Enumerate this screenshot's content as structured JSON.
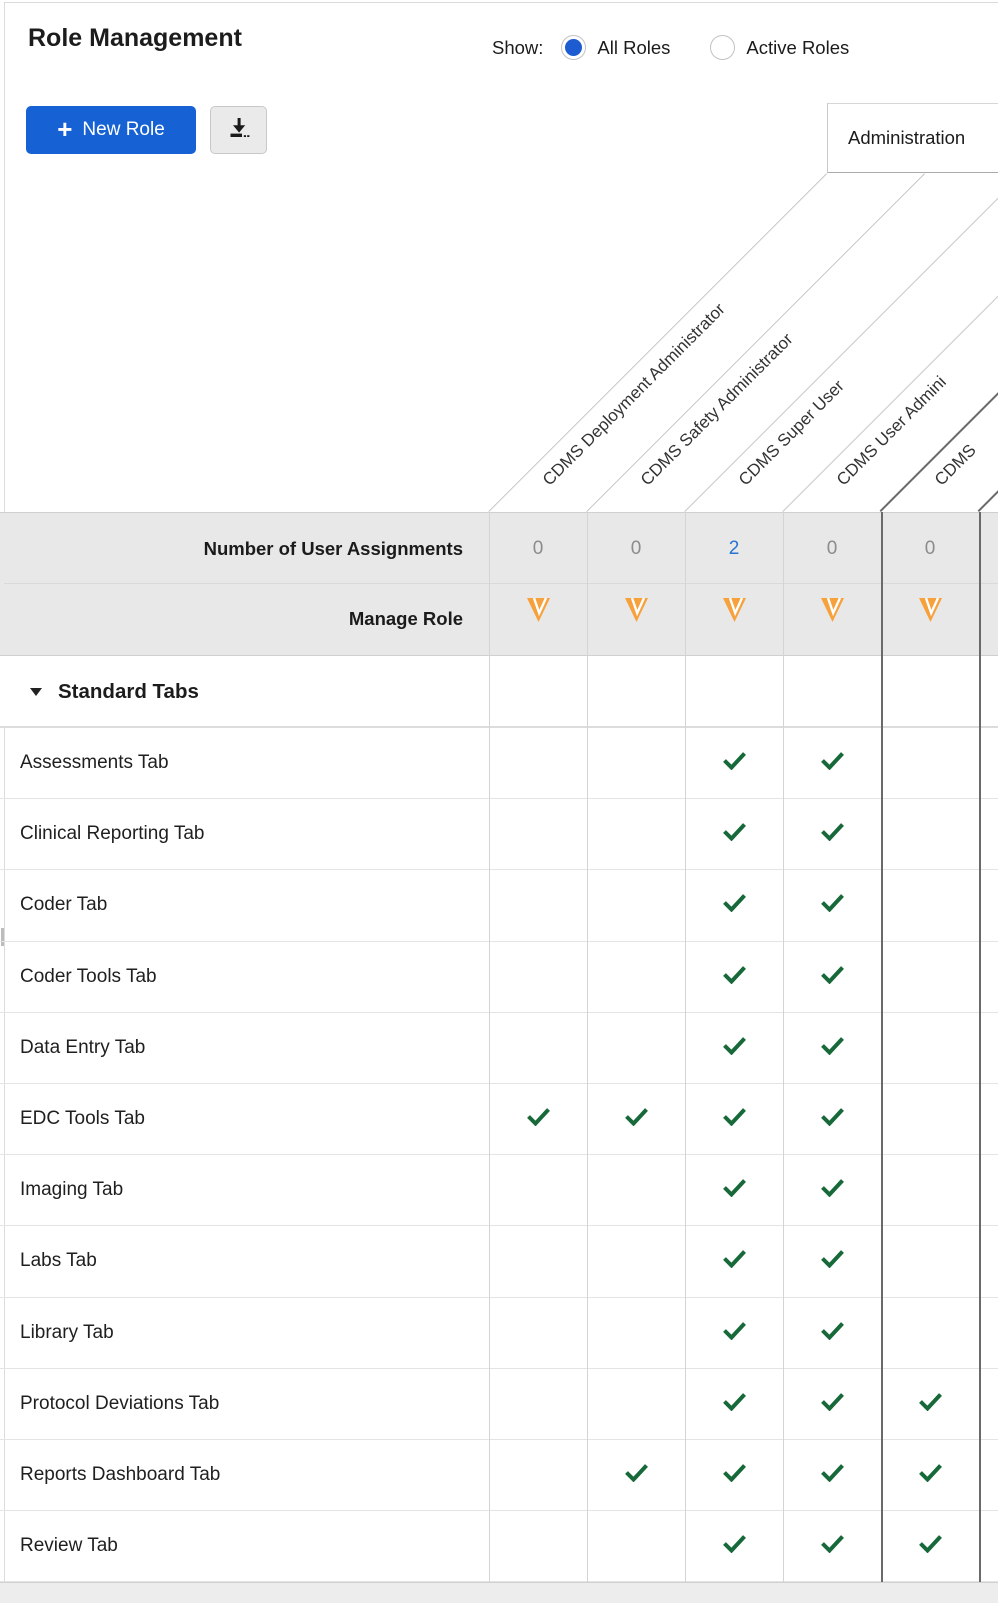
{
  "page": {
    "title": "Role Management",
    "show": {
      "label": "Show:",
      "options": [
        {
          "label": "All Roles",
          "selected": true
        },
        {
          "label": "Active Roles",
          "selected": false
        }
      ]
    },
    "toolbar": {
      "plus": "+",
      "new_role": "New Role",
      "download_icon": "download-icon"
    }
  },
  "admin_tab": {
    "label": "Administration"
  },
  "matrix": {
    "row_headers": {
      "assignments": "Number of User Assignments",
      "manage": "Manage Role"
    },
    "columns": [
      {
        "label": "CDMS Deployment Administrator",
        "assignments": "0",
        "is_link": false,
        "admin_group": false
      },
      {
        "label": "CDMS Safety Administrator",
        "assignments": "0",
        "is_link": false,
        "admin_group": false
      },
      {
        "label": "CDMS Super User",
        "assignments": "2",
        "is_link": true,
        "admin_group": false
      },
      {
        "label": "CDMS User Admini",
        "assignments": "0",
        "is_link": false,
        "admin_group": false
      },
      {
        "label": "CDMS",
        "assignments": "0",
        "is_link": false,
        "admin_group": true
      },
      {
        "label": "",
        "assignments": "",
        "is_link": false,
        "admin_group": true
      }
    ],
    "section": {
      "label": "Standard Tabs"
    },
    "rows": [
      {
        "label": "Assessments Tab",
        "checks": [
          3,
          4
        ]
      },
      {
        "label": "Clinical Reporting Tab",
        "checks": [
          3,
          4
        ]
      },
      {
        "label": "Coder Tab",
        "checks": [
          3,
          4
        ]
      },
      {
        "label": "Coder Tools Tab",
        "checks": [
          3,
          4
        ]
      },
      {
        "label": "Data Entry Tab",
        "checks": [
          3,
          4
        ]
      },
      {
        "label": "EDC Tools Tab",
        "checks": [
          1,
          2,
          3,
          4
        ]
      },
      {
        "label": "Imaging Tab",
        "checks": [
          3,
          4
        ]
      },
      {
        "label": "Labs Tab",
        "checks": [
          3,
          4
        ]
      },
      {
        "label": "Library Tab",
        "checks": [
          3,
          4
        ]
      },
      {
        "label": "Protocol Deviations Tab",
        "checks": [
          3,
          4,
          5
        ]
      },
      {
        "label": "Reports Dashboard Tab",
        "checks": [
          2,
          3,
          4,
          5
        ]
      },
      {
        "label": "Review Tab",
        "checks": [
          3,
          4,
          5
        ]
      }
    ]
  },
  "colors": {
    "accent_blue": "#1661D3",
    "link_blue": "#2673D2",
    "check_green": "#17693A",
    "veeva_orange": "#F6A13C",
    "muted_gray": "#8C8C8C"
  }
}
